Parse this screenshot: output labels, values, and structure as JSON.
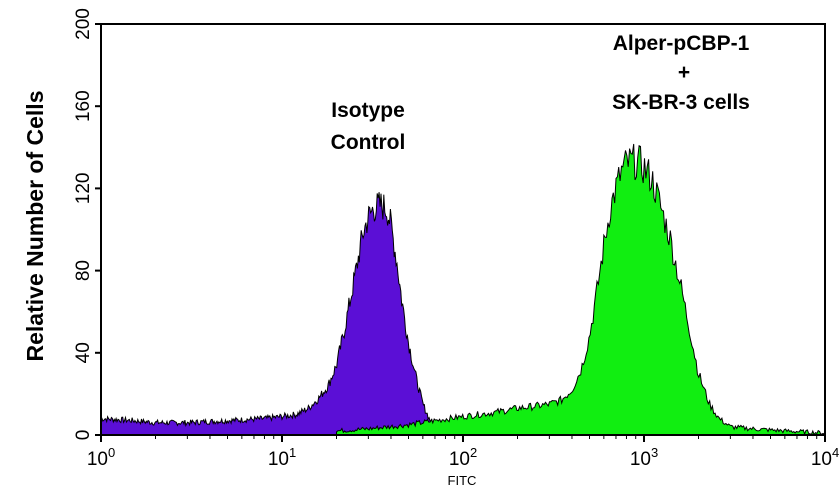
{
  "chart_data": {
    "type": "area",
    "title": "",
    "xlabel": "FITC",
    "ylabel": "Relative Number of Cells",
    "xscale": "log",
    "xlim": [
      1,
      10000
    ],
    "ylim": [
      0,
      200
    ],
    "grid": false,
    "x_ticks": [
      {
        "base": "10",
        "exp": "0"
      },
      {
        "base": "10",
        "exp": "1"
      },
      {
        "base": "10",
        "exp": "2"
      },
      {
        "base": "10",
        "exp": "3"
      },
      {
        "base": "10",
        "exp": "4"
      }
    ],
    "x_tick_values": [
      1,
      10,
      100,
      1000,
      10000
    ],
    "y_ticks": [
      "0",
      "40",
      "80",
      "120",
      "160",
      "200"
    ],
    "y_tick_values": [
      0,
      40,
      80,
      120,
      160,
      200
    ],
    "annotations": {
      "isotype": [
        "Isotype",
        "Control"
      ],
      "sample": [
        "Alper-pCBP-1",
        "+",
        "SK-BR-3 cells"
      ]
    },
    "series": [
      {
        "fill": "#5b0fd6",
        "x": [
          1,
          1.5,
          2,
          3,
          5,
          8,
          10,
          12,
          14,
          16,
          18,
          20,
          22,
          25,
          28,
          30,
          32,
          35,
          38,
          40,
          43,
          46,
          50,
          55,
          60,
          65,
          70,
          75
        ],
        "y": [
          8,
          7,
          6,
          6,
          7,
          8,
          9,
          10,
          13,
          18,
          24,
          34,
          50,
          75,
          98,
          106,
          110,
          112,
          110,
          102,
          85,
          65,
          45,
          28,
          15,
          8,
          4,
          2
        ]
      },
      {
        "fill": "#11ee11",
        "x": [
          20,
          30,
          50,
          70,
          100,
          150,
          200,
          250,
          300,
          350,
          400,
          450,
          500,
          550,
          600,
          650,
          700,
          750,
          800,
          850,
          900,
          950,
          1000,
          1100,
          1200,
          1400,
          1600,
          1800,
          2000,
          2300,
          2600,
          3000,
          4000,
          6000,
          10000
        ],
        "y": [
          2,
          3,
          5,
          7,
          9,
          11,
          13,
          14,
          15,
          17,
          22,
          32,
          48,
          70,
          92,
          110,
          120,
          128,
          132,
          133,
          133,
          132,
          130,
          125,
          115,
          95,
          72,
          50,
          30,
          15,
          8,
          4,
          3,
          2,
          1
        ]
      }
    ]
  }
}
